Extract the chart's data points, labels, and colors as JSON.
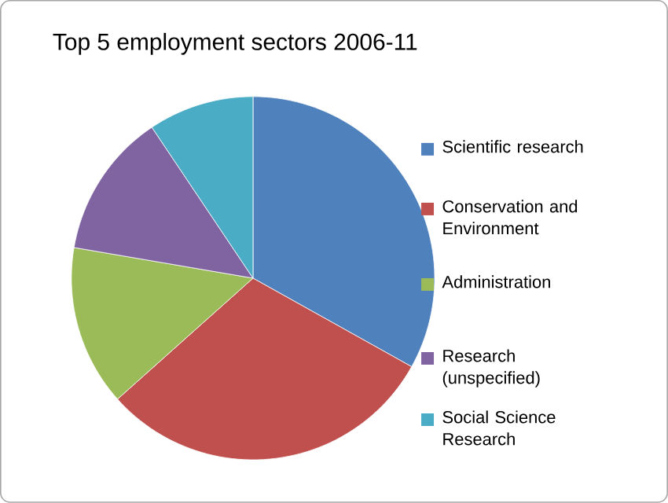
{
  "chart_data": {
    "type": "pie",
    "title": "Top 5 employment sectors 2006-11",
    "categories": [
      "Scientific research",
      "Conservation and Environment",
      "Administration",
      "Research (unspecified)",
      "Social Science Research"
    ],
    "values": [
      33.1,
      30.3,
      14.3,
      12.9,
      9.4
    ],
    "colors": [
      "#4f81bd",
      "#c0504d",
      "#9bbb59",
      "#8064a2",
      "#4bacc6"
    ],
    "legend": "right"
  }
}
